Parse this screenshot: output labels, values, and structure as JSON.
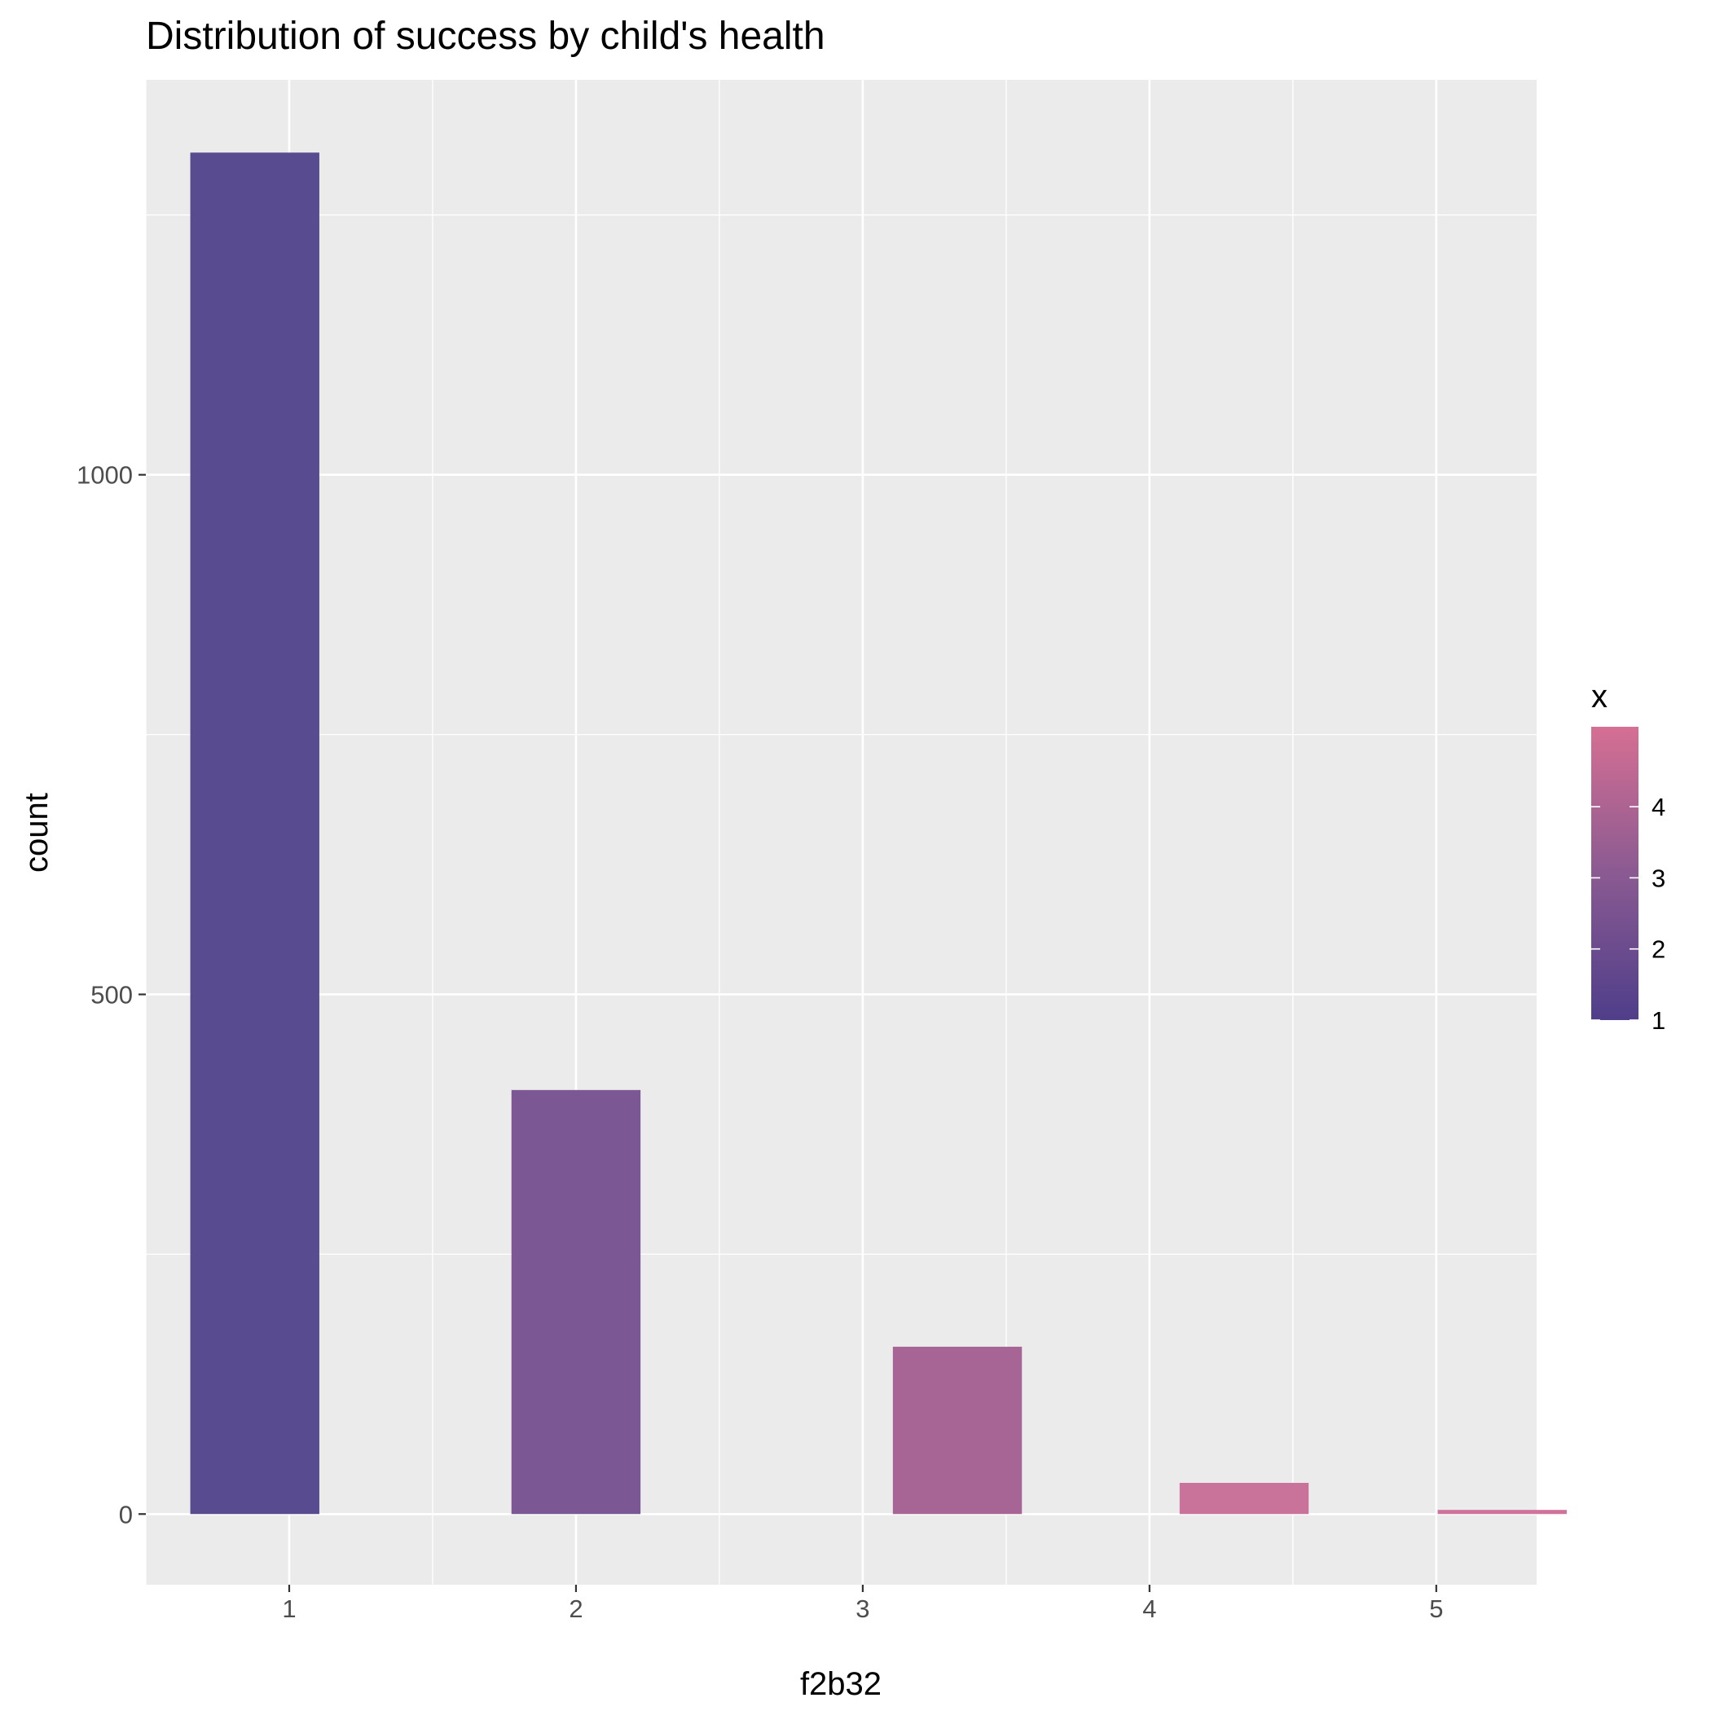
{
  "chart_data": {
    "type": "bar",
    "title": "Distribution of success by child's health",
    "xlabel": "f2b32",
    "ylabel": "count",
    "x": [
      1,
      2,
      3,
      4,
      5
    ],
    "values": [
      1310,
      408,
      161,
      30,
      4
    ],
    "x_ticks": [
      "1",
      "2",
      "3",
      "4",
      "5"
    ],
    "y_ticks": [
      0,
      500,
      1000
    ],
    "xlim": [
      0.5,
      5.35
    ],
    "ylim": [
      -68,
      1380
    ],
    "grid": true,
    "legend": {
      "title": "x",
      "type": "colorbar",
      "position": "right",
      "range": [
        1,
        5
      ],
      "ticks": [
        "1",
        "2",
        "3",
        "4"
      ],
      "colors": {
        "low": "#4f3e8a",
        "high": "#d66f93"
      }
    },
    "bar_colors": [
      "#584b8f",
      "#7b5893",
      "#a66595",
      "#c9739a",
      "#d0739c"
    ]
  }
}
